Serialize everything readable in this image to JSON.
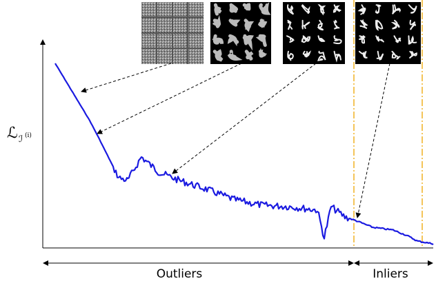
{
  "figure": {
    "y_label": {
      "symbol": "ℒ",
      "subscript": "ℐ",
      "superscript": "(i)"
    },
    "regions": [
      {
        "label": "Outliers"
      },
      {
        "label": "Inliers"
      }
    ]
  }
}
